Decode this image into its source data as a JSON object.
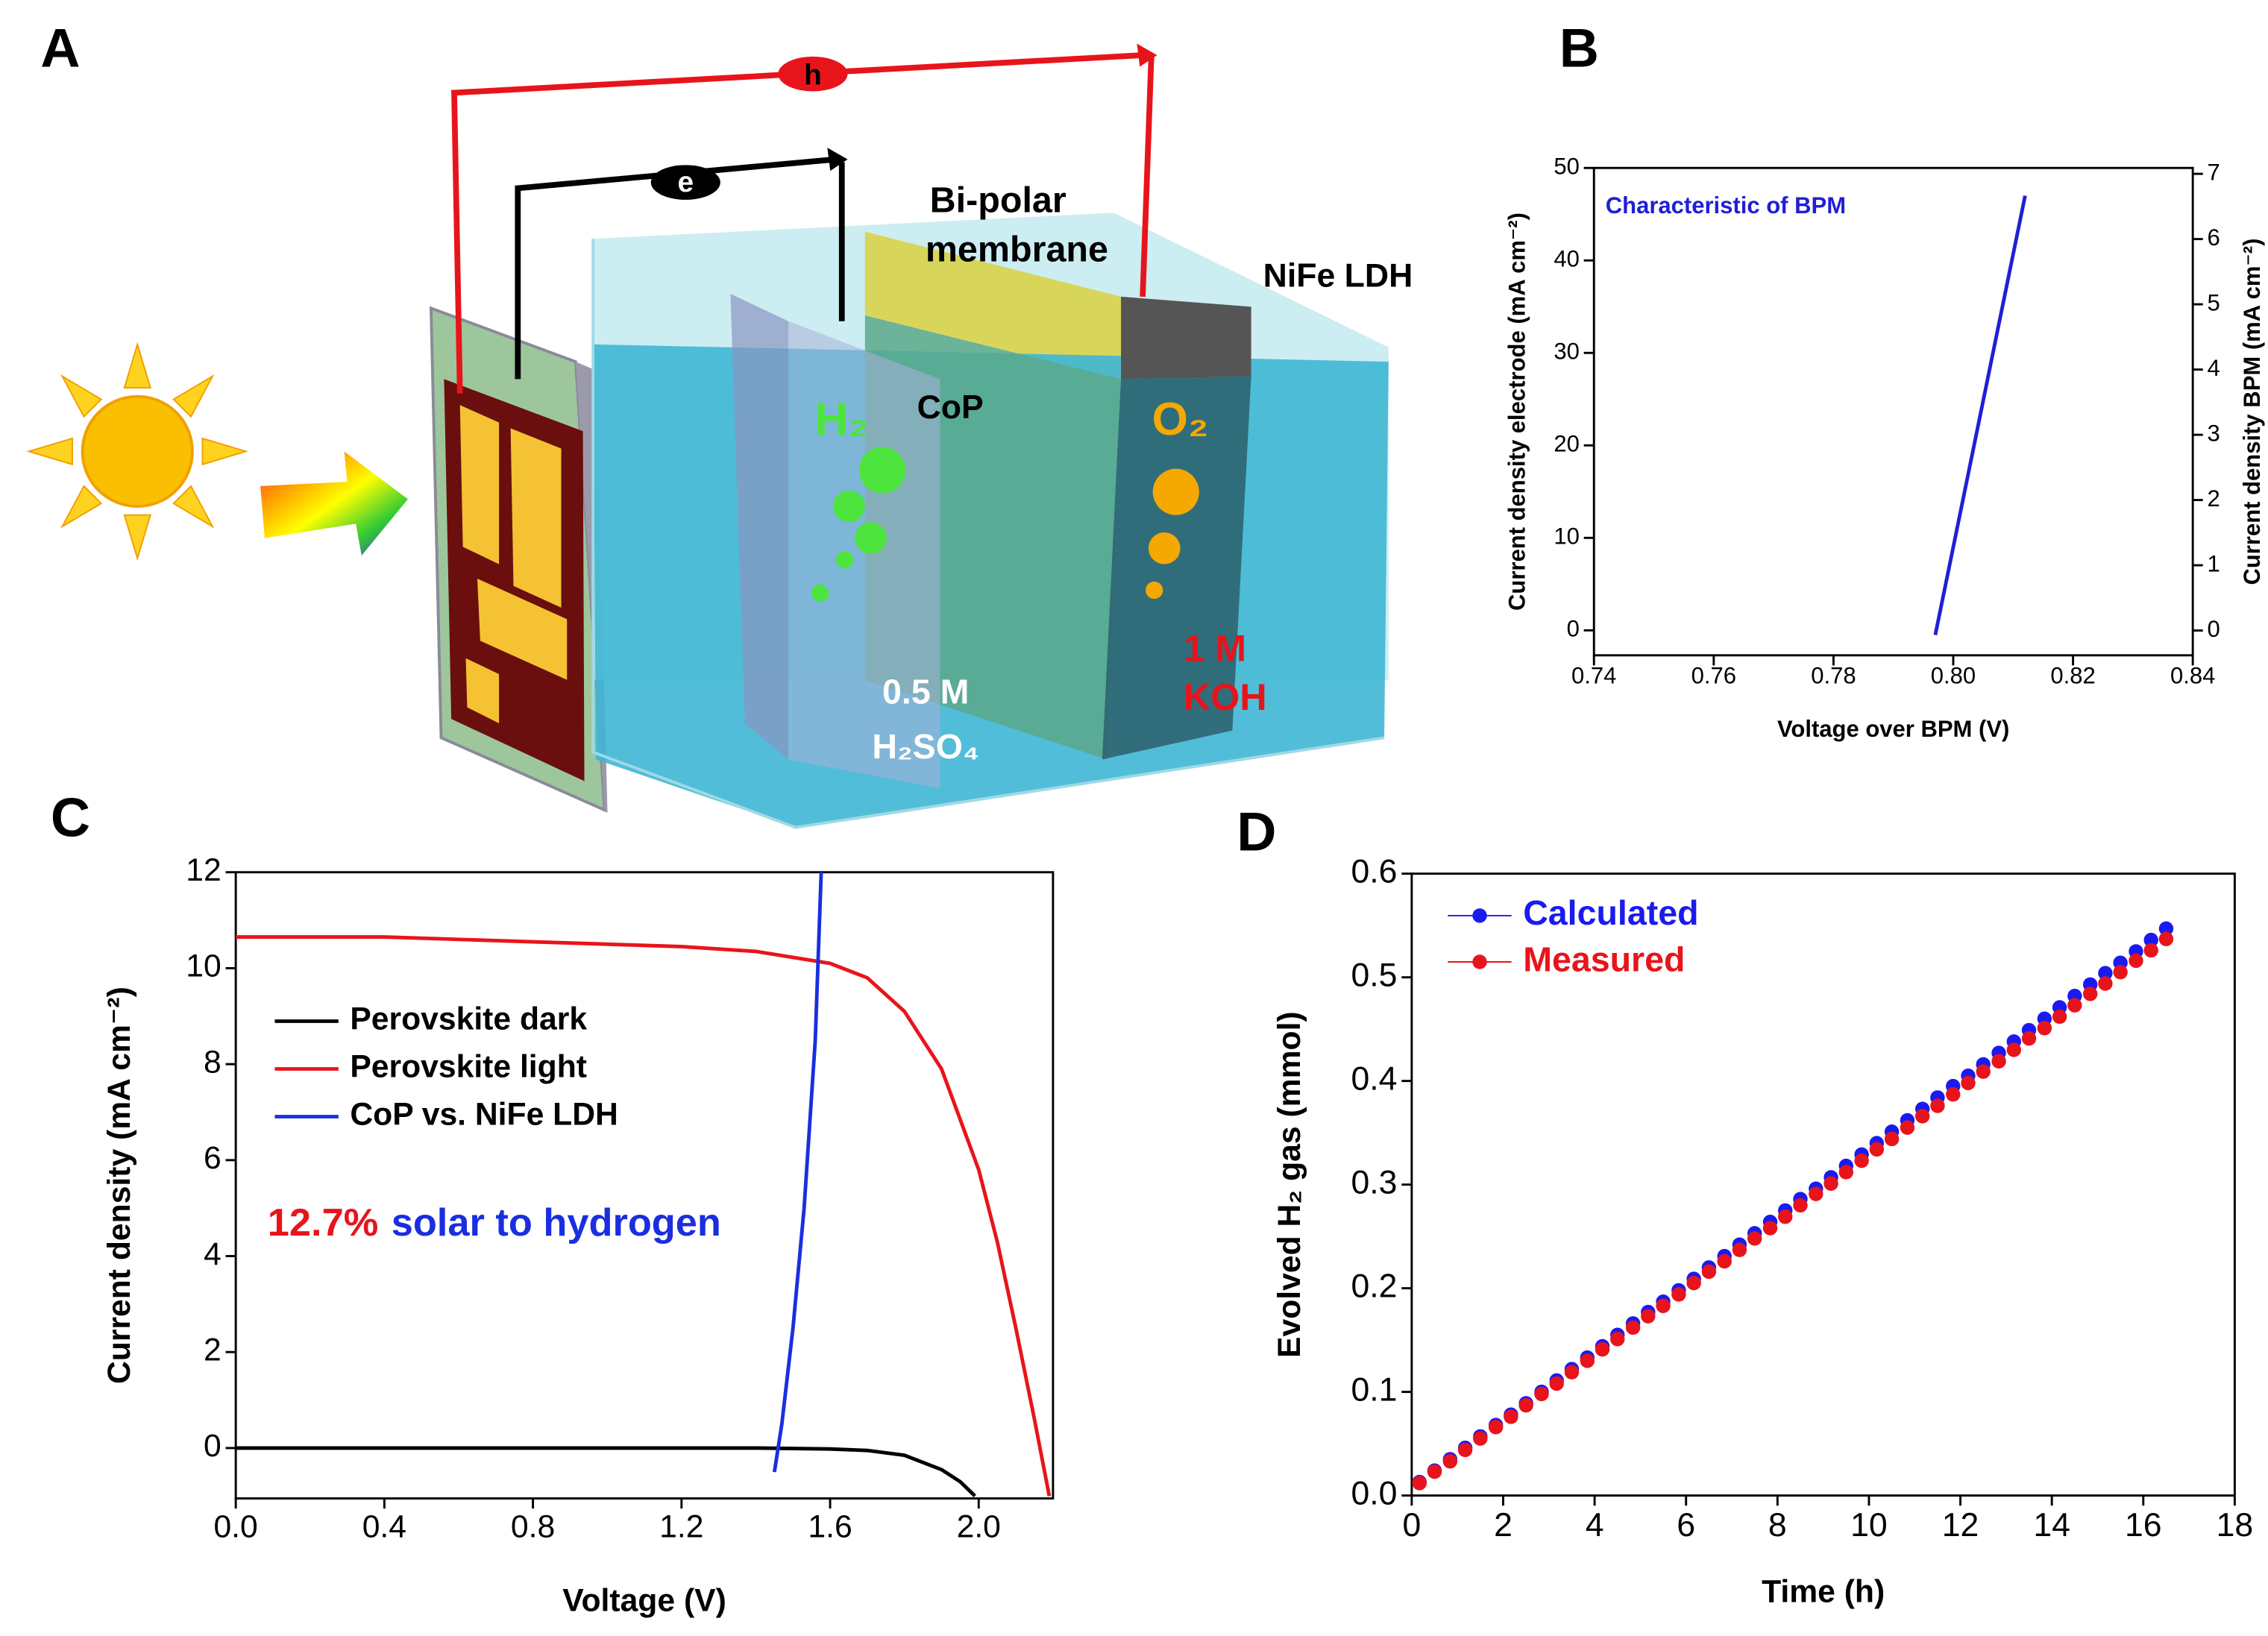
{
  "diagram": {
    "panel": "A",
    "photon_label": "h",
    "electron_label": "e",
    "membrane_label": [
      "Bi-polar",
      "membrane"
    ],
    "anode_catalyst": "NiFe LDH",
    "cathode_catalyst": "CoP",
    "cathode_gas": "H₂",
    "anode_gas": "O₂",
    "catholyte": [
      "0.5 M",
      "H₂SO₄"
    ],
    "anolyte": [
      "1 M",
      "KOH"
    ]
  },
  "chart_data": [
    {
      "type": "line",
      "panel": "B",
      "xlabel": "Voltage over BPM (V)",
      "ylabel": "Current density electrode (mA cm⁻²)",
      "y2label": "Current density BPM (mA cm⁻²)",
      "annotation": "Characteristic of BPM",
      "annotation_color": "#1f1fd6",
      "color": "#1f1fd6",
      "x": [
        0.797,
        0.8,
        0.803,
        0.806,
        0.809,
        0.812
      ],
      "values": [
        -0.5,
        9,
        18.5,
        28,
        37.5,
        47
      ],
      "xlim": [
        0.74,
        0.84
      ],
      "xticks": [
        0.74,
        0.76,
        0.78,
        {
          "value": 0.8,
          "label": "0.80"
        },
        0.82,
        0.84
      ],
      "ylim": [
        -2.7,
        50
      ],
      "yticks": [
        0,
        10,
        20,
        30,
        40,
        50
      ],
      "y2lim": [
        -0.38,
        7.09
      ],
      "y2ticks": [
        0,
        1,
        2,
        3,
        4,
        5,
        6,
        7
      ]
    },
    {
      "type": "line",
      "panel": "C",
      "xlabel": "Voltage (V)",
      "ylabel": "Current density (mA cm⁻²)",
      "annotations": [
        {
          "text": "12.7%",
          "color": "#e8141b"
        },
        {
          "text": "solar to hydrogen",
          "color": "#1a2ee0"
        }
      ],
      "legend": "upper left",
      "series": [
        {
          "name": "Perovskite dark",
          "color": "#000000",
          "x": [
            0,
            0.4,
            0.8,
            1.2,
            1.4,
            1.6,
            1.7,
            1.8,
            1.9,
            1.95,
            1.99
          ],
          "values": [
            0,
            0,
            0,
            0,
            0,
            -0.02,
            -0.05,
            -0.15,
            -0.45,
            -0.7,
            -1.0
          ]
        },
        {
          "name": "Perovskite light",
          "color": "#e8141b",
          "x": [
            0,
            0.4,
            0.8,
            1.2,
            1.4,
            1.6,
            1.7,
            1.8,
            1.9,
            2.0,
            2.05,
            2.1,
            2.15,
            2.19
          ],
          "values": [
            10.65,
            10.65,
            10.55,
            10.45,
            10.35,
            10.1,
            9.8,
            9.1,
            7.9,
            5.8,
            4.3,
            2.5,
            0.6,
            -1.0
          ]
        },
        {
          "name": "CoP vs. NiFe LDH",
          "color": "#1a2ee0",
          "x": [
            1.45,
            1.47,
            1.5,
            1.53,
            1.56,
            1.576
          ],
          "values": [
            -0.5,
            0.5,
            2.5,
            5,
            8.5,
            12
          ]
        }
      ],
      "xlim": [
        0,
        2.2
      ],
      "xticks": [
        {
          "value": 0,
          "label": "0.0"
        },
        0.4,
        0.8,
        1.2,
        1.6,
        {
          "value": 2,
          "label": "2.0"
        }
      ],
      "ylim": [
        -1.05,
        12
      ],
      "yticks": [
        0,
        2,
        4,
        6,
        8,
        10,
        12
      ]
    },
    {
      "type": "scatter",
      "panel": "D",
      "xlabel": "Time (h)",
      "ylabel": "Evolved H₂ gas (mmol)",
      "legend": "upper left",
      "x": [
        0.17,
        0.5,
        0.84,
        1.17,
        1.5,
        1.84,
        2.17,
        2.5,
        2.84,
        3.17,
        3.5,
        3.84,
        4.17,
        4.5,
        4.84,
        5.17,
        5.5,
        5.84,
        6.17,
        6.5,
        6.84,
        7.17,
        7.5,
        7.84,
        8.17,
        8.5,
        8.84,
        9.17,
        9.5,
        9.84,
        10.17,
        10.5,
        10.84,
        11.17,
        11.5,
        11.84,
        12.17,
        12.5,
        12.84,
        13.17,
        13.5,
        13.84,
        14.17,
        14.5,
        14.84,
        15.17,
        15.5,
        15.84,
        16.17,
        16.5
      ],
      "series": [
        {
          "name": "Calculated",
          "color": "#1a1af0",
          "values": [
            0.013,
            0.024,
            0.035,
            0.046,
            0.057,
            0.068,
            0.078,
            0.089,
            0.1,
            0.111,
            0.122,
            0.133,
            0.144,
            0.155,
            0.166,
            0.177,
            0.187,
            0.198,
            0.209,
            0.22,
            0.231,
            0.242,
            0.253,
            0.264,
            0.275,
            0.286,
            0.296,
            0.307,
            0.318,
            0.329,
            0.34,
            0.351,
            0.362,
            0.373,
            0.384,
            0.395,
            0.405,
            0.416,
            0.427,
            0.438,
            0.449,
            0.46,
            0.471,
            0.482,
            0.493,
            0.504,
            0.514,
            0.525,
            0.536,
            0.547
          ]
        },
        {
          "name": "Measured",
          "color": "#e8141b",
          "values": [
            0.012,
            0.023,
            0.033,
            0.044,
            0.055,
            0.066,
            0.076,
            0.087,
            0.098,
            0.108,
            0.119,
            0.13,
            0.141,
            0.151,
            0.162,
            0.173,
            0.183,
            0.194,
            0.205,
            0.216,
            0.226,
            0.237,
            0.248,
            0.258,
            0.269,
            0.28,
            0.291,
            0.301,
            0.312,
            0.323,
            0.334,
            0.344,
            0.355,
            0.366,
            0.376,
            0.387,
            0.398,
            0.409,
            0.419,
            0.43,
            0.441,
            0.451,
            0.462,
            0.473,
            0.484,
            0.494,
            0.505,
            0.516,
            0.526,
            0.537
          ]
        }
      ],
      "xlim": [
        0,
        18
      ],
      "xticks": [
        0,
        2,
        4,
        6,
        8,
        10,
        12,
        14,
        16,
        18
      ],
      "ylim": [
        0,
        0.6
      ],
      "yticks": [
        {
          "value": 0,
          "label": "0.0"
        },
        0.1,
        0.2,
        0.3,
        0.4,
        0.5,
        0.6
      ]
    }
  ]
}
